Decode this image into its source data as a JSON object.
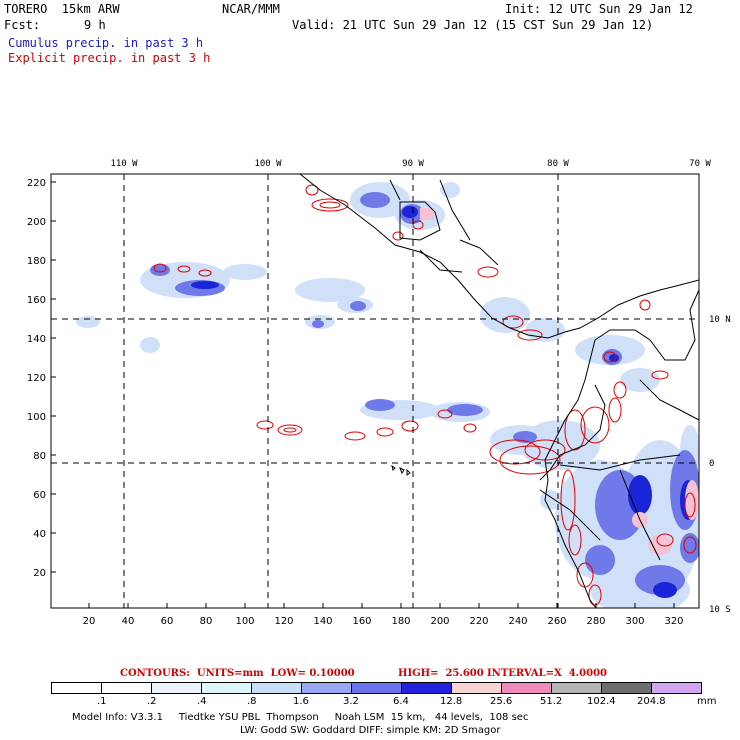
{
  "header": {
    "model_name": "TORERO  15km ARW",
    "org": "NCAR/MMM",
    "init": "Init: 12 UTC Sun 29 Jan 12",
    "fcst_label": "Fcst:",
    "fcst_value": "9 h",
    "valid": "Valid: 21 UTC Sun 29 Jan 12 (15 CST Sun 29 Jan 12)",
    "cumulus_label": "Cumulus precip. in past 3 h",
    "explicit_label": "Explicit precip. in past 3 h"
  },
  "map": {
    "top_longitude_labels": [
      "110 W",
      "100 W",
      "90 W",
      "80 W",
      "70 W"
    ],
    "right_latitude_labels": [
      "10 N",
      "0",
      "10 S"
    ],
    "y_grid_labels": [
      "220",
      "200",
      "180",
      "160",
      "140",
      "120",
      "100",
      "80",
      "60",
      "40",
      "20"
    ],
    "x_grid_labels": [
      "20",
      "40",
      "60",
      "80",
      "100",
      "120",
      "140",
      "160",
      "180",
      "200",
      "220",
      "240",
      "260",
      "280",
      "300",
      "320"
    ],
    "colors": {
      "coast": "#000000",
      "explicit_contour": "#e00000",
      "cumulus_light": "#cfe0f8",
      "cumulus_mid": "#6f7ae8",
      "cumulus_dark": "#1a24d8",
      "pink": "#f4c2d4"
    }
  },
  "contours_line": {
    "units_text": "CONTOURS:  UNITS=mm  LOW= 0.10000",
    "high_text": "HIGH=  25.600",
    "interval_text": "INTERVAL=X  4.0000"
  },
  "legend": {
    "unit": "mm",
    "thresholds": [
      ".1",
      ".2",
      ".4",
      ".8",
      "1.6",
      "3.2",
      "6.4",
      "12.8",
      "25.6",
      "51.2",
      "102.4",
      "204.8"
    ],
    "colors": [
      "#ffffff",
      "#ffffff",
      "#ecf3fb",
      "#ddf8fa",
      "#c8ddf8",
      "#9aa7f2",
      "#6b73ec",
      "#2323dd",
      "#f7d5d5",
      "#f08cbc",
      "#b5b5b5",
      "#6e6e6e",
      "#d3a5f0"
    ]
  },
  "footer": {
    "line1": "Model Info: V3.3.1     Tiedtke YSU PBL  Thompson     Noah LSM  15 km,   44 levels,  108 sec",
    "line2": "LW: Godd SW: Goddard DIFF: simple KM: 2D Smagor"
  }
}
